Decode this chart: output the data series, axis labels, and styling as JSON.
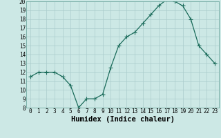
{
  "x": [
    0,
    1,
    2,
    3,
    4,
    5,
    6,
    7,
    8,
    9,
    10,
    11,
    12,
    13,
    14,
    15,
    16,
    17,
    18,
    19,
    20,
    21,
    22,
    23
  ],
  "y": [
    11.5,
    12.0,
    12.0,
    12.0,
    11.5,
    10.5,
    8.0,
    9.0,
    9.0,
    9.5,
    12.5,
    15.0,
    16.0,
    16.5,
    17.5,
    18.5,
    19.5,
    20.2,
    20.0,
    19.5,
    18.0,
    15.0,
    14.0,
    13.0
  ],
  "xlabel": "Humidex (Indice chaleur)",
  "ylim": [
    8,
    20
  ],
  "xlim": [
    -0.5,
    23.5
  ],
  "yticks": [
    8,
    9,
    10,
    11,
    12,
    13,
    14,
    15,
    16,
    17,
    18,
    19,
    20
  ],
  "xticks": [
    0,
    1,
    2,
    3,
    4,
    5,
    6,
    7,
    8,
    9,
    10,
    11,
    12,
    13,
    14,
    15,
    16,
    17,
    18,
    19,
    20,
    21,
    22,
    23
  ],
  "line_color": "#1a6b5a",
  "marker_color": "#1a6b5a",
  "bg_color": "#cce8e5",
  "grid_color": "#aacccc",
  "tick_label_fontsize": 5.5,
  "xlabel_fontsize": 7.5,
  "marker_size": 2.0,
  "line_width": 0.9
}
